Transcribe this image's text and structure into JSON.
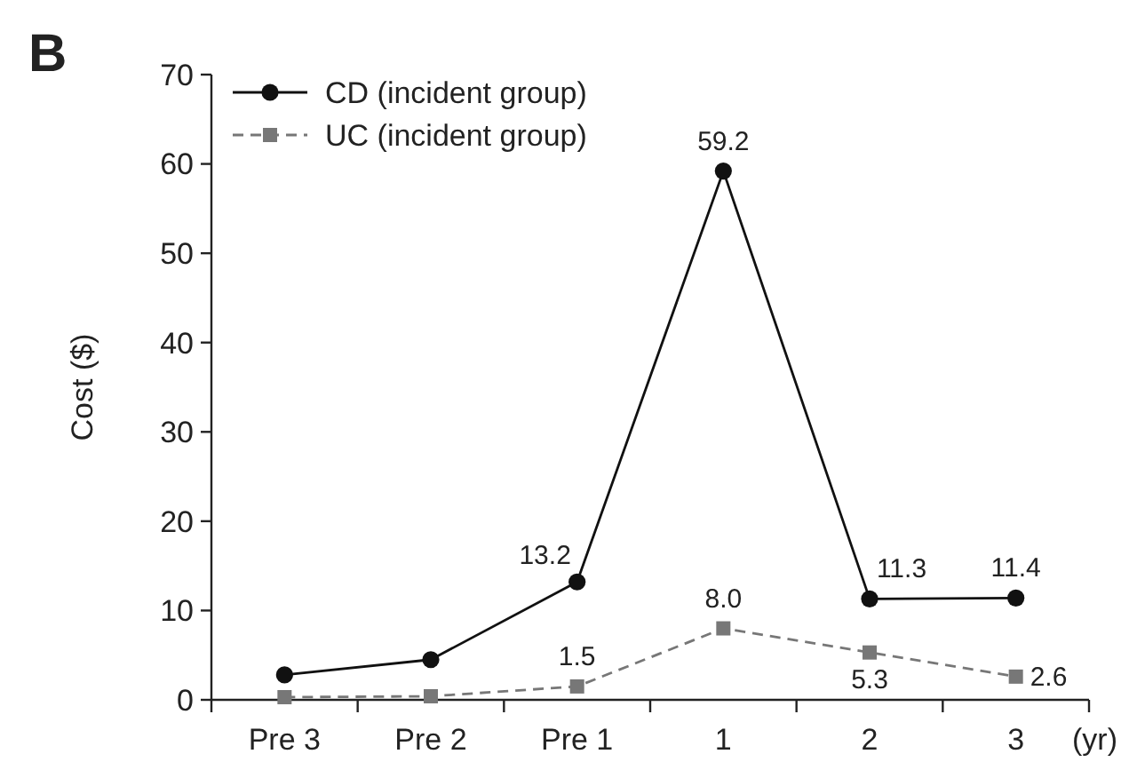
{
  "chart_data": {
    "type": "line",
    "ylabel": "Cost ($)",
    "xlabel": "(yr)",
    "annotations": [
      "B"
    ],
    "categories": [
      "Pre 3",
      "Pre 2",
      "Pre 1",
      "1",
      "2",
      "3"
    ],
    "ylim": [
      0,
      70
    ],
    "yticks": [
      0,
      10,
      20,
      30,
      40,
      50,
      60,
      70
    ],
    "legend": "top left",
    "grid": false,
    "series": [
      {
        "name": "CD (incident group)",
        "color": "#111111",
        "marker": "circle",
        "line_style": "solid",
        "values": [
          2.8,
          4.5,
          13.2,
          59.2,
          11.3,
          11.4
        ],
        "value_labels": [
          null,
          null,
          "13.2",
          "59.2",
          "11.3",
          "11.4"
        ]
      },
      {
        "name": "UC (incident group)",
        "color": "#777777",
        "marker": "square",
        "line_style": "dashed",
        "values": [
          0.3,
          0.4,
          1.5,
          8.0,
          5.3,
          2.6
        ],
        "value_labels": [
          null,
          null,
          "1.5",
          "8.0",
          "5.3",
          "2.6"
        ]
      }
    ]
  }
}
